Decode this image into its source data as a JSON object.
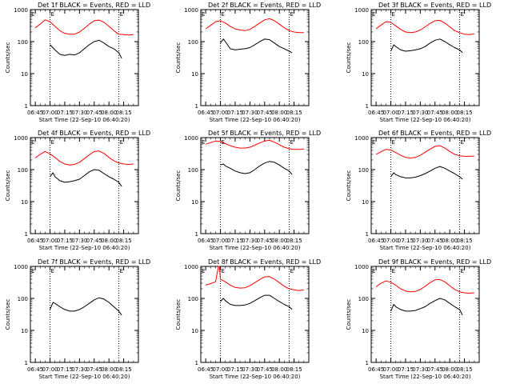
{
  "figure": {
    "x_tick_labels": [
      "06:45",
      "07:00",
      "07:15",
      "07:30",
      "07:45",
      "08:00",
      "08:15"
    ],
    "xlabel": "Start Time (22-Sep-10 06:40:20)",
    "ylabel": "Counts/sec",
    "y_tick_labels": [
      "1",
      "10",
      "100",
      "1000"
    ],
    "marker_label": "E",
    "colors": {
      "events": "#000000",
      "lld": "#ff0000",
      "axes": "#000000",
      "background": "#ffffff"
    }
  },
  "chart_data": [
    {
      "type": "line",
      "title": "Det 1f BLACK = Events, RED = LLD",
      "xlabel": "Start Time (22-Sep-10 06:40:20)",
      "ylabel": "Counts/sec",
      "xlim_min": [
        -5,
        105
      ],
      "ylim": [
        1,
        1000
      ],
      "yscale": "log",
      "marker_lines_min": [
        15,
        85
      ],
      "series": [
        {
          "name": "Events",
          "color": "#000000",
          "x_min": [
            15,
            20,
            25,
            30,
            35,
            40,
            45,
            50,
            55,
            60,
            65,
            70,
            75,
            80,
            85,
            88
          ],
          "values": [
            80,
            55,
            40,
            37,
            40,
            38,
            45,
            60,
            80,
            100,
            110,
            90,
            70,
            60,
            45,
            30
          ]
        },
        {
          "name": "LLD",
          "color": "#ff0000",
          "x_min": [
            0,
            5,
            10,
            15,
            20,
            25,
            30,
            35,
            40,
            45,
            50,
            55,
            60,
            65,
            70,
            75,
            80,
            85,
            90,
            95,
            100
          ],
          "values": [
            270,
            350,
            480,
            420,
            300,
            220,
            180,
            170,
            170,
            200,
            260,
            350,
            450,
            470,
            400,
            300,
            220,
            170,
            165,
            160,
            165
          ]
        }
      ]
    },
    {
      "type": "line",
      "title": "Det 2f BLACK = Events, RED = LLD",
      "xlabel": "Start Time (22-Sep-10 06:40:20)",
      "ylabel": "Counts/sec",
      "xlim_min": [
        -5,
        105
      ],
      "ylim": [
        1,
        1000
      ],
      "yscale": "log",
      "marker_lines_min": [
        15,
        85
      ],
      "series": [
        {
          "name": "Events",
          "color": "#000000",
          "x_min": [
            15,
            18,
            20,
            25,
            30,
            35,
            40,
            45,
            50,
            55,
            60,
            65,
            70,
            75,
            80,
            85,
            88
          ],
          "values": [
            90,
            120,
            100,
            60,
            55,
            58,
            60,
            65,
            80,
            100,
            120,
            115,
            90,
            70,
            60,
            50,
            45
          ]
        },
        {
          "name": "LLD",
          "color": "#ff0000",
          "x_min": [
            0,
            5,
            10,
            15,
            20,
            25,
            30,
            35,
            40,
            45,
            50,
            55,
            60,
            65,
            70,
            75,
            80,
            85,
            90,
            95,
            100
          ],
          "values": [
            250,
            320,
            420,
            450,
            380,
            300,
            250,
            230,
            220,
            240,
            300,
            380,
            480,
            520,
            450,
            350,
            270,
            220,
            200,
            190,
            190
          ]
        }
      ]
    },
    {
      "type": "line",
      "title": "Det 3f BLACK = Events, RED = LLD",
      "xlabel": "Start Time (22-Sep-10 06:40:20)",
      "ylabel": "Counts/sec",
      "xlim_min": [
        -5,
        105
      ],
      "ylim": [
        1,
        1000
      ],
      "yscale": "log",
      "marker_lines_min": [
        15,
        85
      ],
      "series": [
        {
          "name": "Events",
          "color": "#000000",
          "x_min": [
            15,
            18,
            20,
            25,
            30,
            35,
            40,
            45,
            50,
            55,
            60,
            65,
            70,
            75,
            80,
            85,
            88
          ],
          "values": [
            50,
            80,
            70,
            55,
            50,
            52,
            55,
            60,
            70,
            90,
            110,
            120,
            100,
            80,
            65,
            55,
            45
          ]
        },
        {
          "name": "LLD",
          "color": "#ff0000",
          "x_min": [
            0,
            5,
            10,
            15,
            20,
            25,
            30,
            35,
            40,
            45,
            50,
            55,
            60,
            65,
            70,
            75,
            80,
            85,
            90,
            95,
            100
          ],
          "values": [
            250,
            330,
            420,
            400,
            310,
            240,
            200,
            190,
            200,
            230,
            290,
            370,
            450,
            460,
            380,
            290,
            220,
            190,
            170,
            165,
            175
          ]
        }
      ]
    },
    {
      "type": "line",
      "title": "Det 4f BLACK = Events, RED = LLD",
      "xlabel": "Start Time (22-Sep-10 06:40:20)",
      "ylabel": "Counts/sec",
      "xlim_min": [
        -5,
        105
      ],
      "ylim": [
        1,
        1000
      ],
      "yscale": "log",
      "marker_lines_min": [
        15,
        85
      ],
      "series": [
        {
          "name": "Events",
          "color": "#000000",
          "x_min": [
            15,
            18,
            20,
            25,
            30,
            35,
            40,
            45,
            50,
            55,
            60,
            65,
            70,
            75,
            80,
            85,
            88
          ],
          "values": [
            60,
            80,
            60,
            45,
            40,
            42,
            45,
            50,
            65,
            85,
            100,
            95,
            75,
            60,
            50,
            40,
            30
          ]
        },
        {
          "name": "LLD",
          "color": "#ff0000",
          "x_min": [
            0,
            5,
            10,
            15,
            20,
            25,
            30,
            35,
            40,
            45,
            50,
            55,
            60,
            65,
            70,
            75,
            80,
            85,
            90,
            95,
            100
          ],
          "values": [
            230,
            300,
            370,
            310,
            240,
            180,
            150,
            140,
            145,
            170,
            220,
            290,
            370,
            380,
            320,
            240,
            190,
            160,
            150,
            145,
            150
          ]
        }
      ]
    },
    {
      "type": "line",
      "title": "Det 5f BLACK = Events, RED = LLD",
      "xlabel": "Start Time (22-Sep-10 06:40:20)",
      "ylabel": "Counts/sec",
      "xlim_min": [
        -5,
        105
      ],
      "ylim": [
        1,
        1000
      ],
      "yscale": "log",
      "marker_lines_min": [
        15,
        85
      ],
      "series": [
        {
          "name": "Events",
          "color": "#000000",
          "x_min": [
            15,
            18,
            20,
            25,
            30,
            35,
            40,
            45,
            50,
            55,
            60,
            65,
            70,
            75,
            80,
            85,
            88
          ],
          "values": [
            140,
            150,
            130,
            110,
            90,
            80,
            75,
            80,
            100,
            130,
            160,
            180,
            170,
            140,
            110,
            90,
            70
          ]
        },
        {
          "name": "LLD",
          "color": "#ff0000",
          "x_min": [
            0,
            5,
            10,
            15,
            20,
            25,
            30,
            35,
            40,
            45,
            50,
            55,
            60,
            65,
            70,
            75,
            80,
            85,
            90,
            95,
            100
          ],
          "values": [
            620,
            700,
            780,
            760,
            650,
            560,
            500,
            470,
            470,
            500,
            580,
            680,
            780,
            820,
            720,
            600,
            500,
            450,
            430,
            430,
            440
          ]
        }
      ]
    },
    {
      "type": "line",
      "title": "Det 6f BLACK = Events, RED = LLD",
      "xlabel": "Start Time (22-Sep-10 06:40:20)",
      "ylabel": "Counts/sec",
      "xlim_min": [
        -5,
        105
      ],
      "ylim": [
        1,
        1000
      ],
      "yscale": "log",
      "marker_lines_min": [
        15,
        85
      ],
      "series": [
        {
          "name": "Events",
          "color": "#000000",
          "x_min": [
            15,
            18,
            20,
            25,
            30,
            35,
            40,
            45,
            50,
            55,
            60,
            65,
            70,
            75,
            80,
            85,
            88
          ],
          "values": [
            60,
            80,
            70,
            60,
            55,
            55,
            58,
            65,
            75,
            90,
            110,
            125,
            110,
            90,
            75,
            60,
            50
          ]
        },
        {
          "name": "LLD",
          "color": "#ff0000",
          "x_min": [
            0,
            5,
            10,
            15,
            20,
            25,
            30,
            35,
            40,
            45,
            50,
            55,
            60,
            65,
            70,
            75,
            80,
            85,
            90,
            95,
            100
          ],
          "values": [
            300,
            360,
            430,
            410,
            340,
            280,
            240,
            230,
            240,
            280,
            350,
            440,
            530,
            560,
            470,
            370,
            300,
            270,
            260,
            260,
            265
          ]
        }
      ]
    },
    {
      "type": "line",
      "title": "Det 7f BLACK = Events, RED = LLD",
      "xlabel": "Start Time (22-Sep-10 06:40:20)",
      "ylabel": "Counts/sec",
      "xlim_min": [
        -5,
        105
      ],
      "ylim": [
        1,
        1000
      ],
      "yscale": "log",
      "marker_lines_min": [
        15,
        85
      ],
      "series": [
        {
          "name": "Events",
          "color": "#000000",
          "x_min": [
            15,
            18,
            20,
            25,
            30,
            35,
            40,
            45,
            50,
            55,
            60,
            65,
            70,
            75,
            80,
            85,
            88
          ],
          "values": [
            45,
            75,
            70,
            55,
            45,
            40,
            40,
            45,
            55,
            70,
            90,
            105,
            95,
            75,
            55,
            40,
            30
          ]
        }
      ]
    },
    {
      "type": "line",
      "title": "Det 8f BLACK = Events, RED = LLD",
      "xlabel": "Start Time (22-Sep-10 06:40:20)",
      "ylabel": "Counts/sec",
      "xlim_min": [
        -5,
        105
      ],
      "ylim": [
        1,
        1000
      ],
      "yscale": "log",
      "marker_lines_min": [
        15,
        85
      ],
      "series": [
        {
          "name": "Events",
          "color": "#000000",
          "x_min": [
            15,
            18,
            20,
            25,
            30,
            35,
            40,
            45,
            50,
            55,
            60,
            65,
            70,
            75,
            80,
            85,
            88
          ],
          "values": [
            80,
            100,
            85,
            65,
            60,
            60,
            62,
            70,
            85,
            105,
            125,
            125,
            100,
            80,
            65,
            55,
            45
          ]
        },
        {
          "name": "LLD",
          "color": "#ff0000",
          "x_min": [
            0,
            5,
            10,
            13,
            14,
            15,
            20,
            25,
            30,
            35,
            40,
            45,
            50,
            55,
            60,
            65,
            70,
            75,
            80,
            85,
            90,
            95,
            100
          ],
          "values": [
            260,
            290,
            330,
            1000,
            1000,
            400,
            330,
            260,
            220,
            210,
            215,
            250,
            310,
            390,
            470,
            480,
            400,
            310,
            240,
            200,
            185,
            175,
            185
          ]
        }
      ]
    },
    {
      "type": "line",
      "title": "Det 9f BLACK = Events, RED = LLD",
      "xlabel": "Start Time (22-Sep-10 06:40:20)",
      "ylabel": "Counts/sec",
      "xlim_min": [
        -5,
        105
      ],
      "ylim": [
        1,
        1000
      ],
      "yscale": "log",
      "marker_lines_min": [
        15,
        85
      ],
      "series": [
        {
          "name": "Events",
          "color": "#000000",
          "x_min": [
            15,
            18,
            20,
            25,
            30,
            35,
            40,
            45,
            50,
            55,
            60,
            65,
            70,
            75,
            80,
            85,
            88
          ],
          "values": [
            40,
            65,
            55,
            45,
            40,
            40,
            42,
            48,
            55,
            70,
            85,
            100,
            90,
            70,
            55,
            45,
            30
          ]
        },
        {
          "name": "LLD",
          "color": "#ff0000",
          "x_min": [
            0,
            5,
            10,
            15,
            20,
            25,
            30,
            35,
            40,
            45,
            50,
            55,
            60,
            65,
            70,
            75,
            80,
            85,
            90,
            95,
            100
          ],
          "values": [
            230,
            300,
            350,
            320,
            260,
            200,
            170,
            160,
            165,
            190,
            240,
            310,
            380,
            390,
            330,
            250,
            190,
            160,
            150,
            145,
            150
          ]
        }
      ]
    }
  ]
}
